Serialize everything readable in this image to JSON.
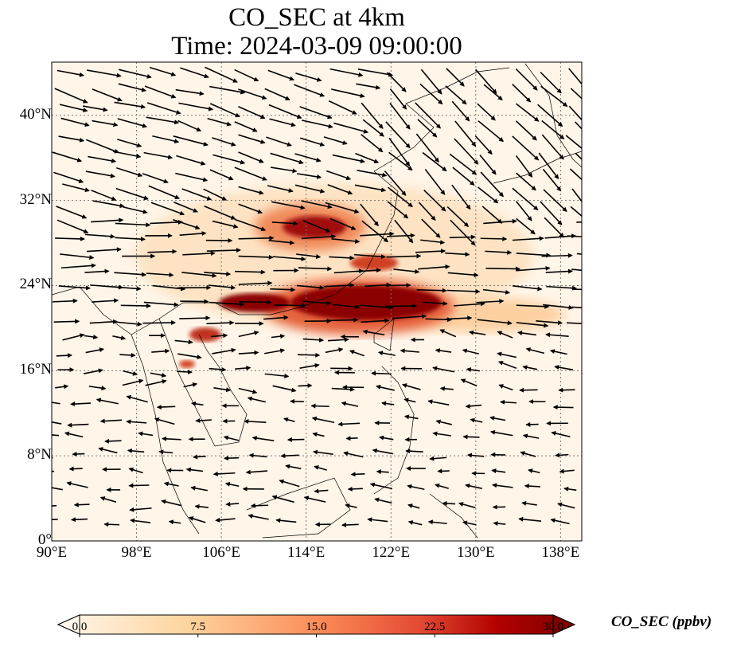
{
  "title": {
    "line1": "CO_SEC at 4km",
    "line2": "Time: 2024-03-09 09:00:00"
  },
  "map": {
    "lon_range": [
      90,
      140
    ],
    "lat_range": [
      0,
      45
    ],
    "x_ticks": [
      {
        "value": 90,
        "label": "90°E"
      },
      {
        "value": 98,
        "label": "98°E"
      },
      {
        "value": 106,
        "label": "106°E"
      },
      {
        "value": 114,
        "label": "114°E"
      },
      {
        "value": 122,
        "label": "122°E"
      },
      {
        "value": 130,
        "label": "130°E"
      },
      {
        "value": 138,
        "label": "138°E"
      }
    ],
    "y_ticks": [
      {
        "value": 0,
        "label": "0°"
      },
      {
        "value": 8,
        "label": "8°N"
      },
      {
        "value": 16,
        "label": "16°N"
      },
      {
        "value": 24,
        "label": "24°N"
      },
      {
        "value": 32,
        "label": "32°N"
      },
      {
        "value": 40,
        "label": "40°N"
      }
    ]
  },
  "colorbar": {
    "label": "CO_SEC (ppbv)",
    "range": [
      0,
      30
    ],
    "ticks": [
      "0.0",
      "7.5",
      "15.0",
      "22.5",
      "30.0"
    ],
    "colors": [
      "#fff7ec",
      "#fdd49e",
      "#fc8d59",
      "#d7301f",
      "#b30000",
      "#7f0000"
    ]
  }
}
